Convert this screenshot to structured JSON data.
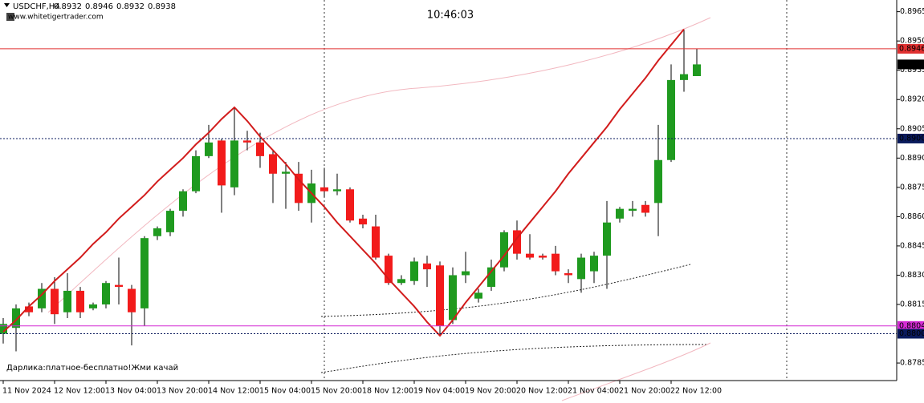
{
  "chart_data": {
    "type": "candlestick",
    "symbol": "USDCHF,H4",
    "ohlc_header": [
      0.8932,
      0.8946,
      0.8932,
      0.8938
    ],
    "website": "www.whitetigertrader.com",
    "clock": "10:46:03",
    "comment": "Дарлика:платное-бесплатно!Жми качай",
    "categories": [
      "11 Nov 2024",
      null,
      null,
      null,
      "12 Nov 12:00",
      null,
      null,
      null,
      "13 Nov 04:00",
      null,
      null,
      null,
      "13 Nov 20:00",
      null,
      null,
      null,
      "14 Nov 12:00",
      null,
      null,
      null,
      "15 Nov 04:00",
      null,
      null,
      null,
      "15 Nov 20:00",
      null,
      null,
      null,
      "18 Nov 12:00",
      null,
      null,
      null,
      "19 Nov 04:00",
      null,
      null,
      null,
      "19 Nov 20:00",
      null,
      null,
      null,
      "20 Nov 12:00",
      null,
      null,
      null,
      "21 Nov 04:00",
      null,
      null,
      null,
      "21 Nov 20:00",
      null,
      null,
      null,
      "22 Nov 12:00",
      null,
      null
    ],
    "open": [
      0.88,
      0.8803,
      0.8814,
      0.8813,
      0.8823,
      0.8811,
      0.8822,
      0.8813,
      0.8815,
      0.8825,
      0.8823,
      0.8813,
      0.885,
      0.8852,
      0.8863,
      0.8873,
      0.8891,
      0.8899,
      0.8875,
      0.8899,
      0.8898,
      0.8892,
      0.8882,
      0.8882,
      0.8867,
      0.8875,
      0.8873,
      0.8874,
      0.8859,
      0.8855,
      0.884,
      0.8826,
      0.8827,
      0.8836,
      0.8835,
      0.8807,
      0.883,
      0.8818,
      0.8824,
      0.8834,
      0.8853,
      0.8841,
      0.884,
      0.8841,
      0.8831,
      0.8828,
      0.8832,
      0.884,
      0.8859,
      0.8863,
      0.8866,
      0.8867,
      0.8889,
      0.893,
      0.8932
    ],
    "high": [
      0.8808,
      0.8815,
      0.8816,
      0.8826,
      0.8829,
      0.8831,
      0.8824,
      0.8816,
      0.8827,
      0.8839,
      0.8825,
      0.885,
      0.8855,
      0.8864,
      0.8874,
      0.8894,
      0.8907,
      0.89,
      0.8916,
      0.8904,
      0.8903,
      0.8894,
      0.8888,
      0.8888,
      0.8884,
      0.8885,
      0.8882,
      0.8875,
      0.8861,
      0.8861,
      0.8841,
      0.883,
      0.8839,
      0.884,
      0.8837,
      0.8834,
      0.8842,
      0.8823,
      0.8838,
      0.8853,
      0.8858,
      0.8851,
      0.8841,
      0.8845,
      0.8833,
      0.8841,
      0.8842,
      0.8868,
      0.8865,
      0.8868,
      0.8868,
      0.8907,
      0.8938,
      0.8956,
      0.8946
    ],
    "low": [
      0.8795,
      0.8791,
      0.8809,
      0.8811,
      0.8805,
      0.8808,
      0.8808,
      0.8812,
      0.8813,
      0.8815,
      0.8794,
      0.8804,
      0.8848,
      0.885,
      0.886,
      0.8872,
      0.889,
      0.8862,
      0.8871,
      0.8894,
      0.8885,
      0.8867,
      0.8864,
      0.8863,
      0.8857,
      0.887,
      0.8871,
      0.8857,
      0.8854,
      0.8838,
      0.8825,
      0.8825,
      0.8825,
      0.8824,
      0.8799,
      0.8805,
      0.8826,
      0.8816,
      0.8822,
      0.8832,
      0.8838,
      0.8838,
      0.8838,
      0.883,
      0.8826,
      0.8821,
      0.8826,
      0.8823,
      0.8857,
      0.886,
      0.886,
      0.885,
      0.8888,
      0.8924,
      0.8932
    ],
    "close": [
      0.8805,
      0.8813,
      0.8811,
      0.8823,
      0.881,
      0.8822,
      0.8811,
      0.8815,
      0.8826,
      0.8824,
      0.8811,
      0.8849,
      0.8854,
      0.8863,
      0.8873,
      0.8891,
      0.8898,
      0.8876,
      0.8899,
      0.8898,
      0.8891,
      0.8882,
      0.8883,
      0.8867,
      0.8877,
      0.8873,
      0.8874,
      0.8858,
      0.8856,
      0.8839,
      0.8826,
      0.8828,
      0.8837,
      0.8833,
      0.8804,
      0.883,
      0.8832,
      0.8821,
      0.8834,
      0.8852,
      0.8841,
      0.8839,
      0.8839,
      0.8832,
      0.883,
      0.8839,
      0.884,
      0.8857,
      0.8864,
      0.8864,
      0.8862,
      0.8889,
      0.893,
      0.8933,
      0.8938
    ],
    "up_color": "#1f9a1f",
    "down_color": "#f21b1b",
    "zigzag": {
      "color": "#d21c1c",
      "values": [
        0.8801,
        0.8807,
        0.8814,
        0.882,
        0.8827,
        0.8833,
        0.8839,
        0.8846,
        0.8852,
        0.8859,
        0.8865,
        0.8871,
        0.8878,
        0.8884,
        0.889,
        0.8897,
        0.8903,
        0.891,
        0.8916,
        0.8909,
        0.8901,
        0.8894,
        0.8887,
        0.8879,
        0.8872,
        0.8865,
        0.8857,
        0.885,
        0.8843,
        0.8836,
        0.8828,
        0.8821,
        0.8814,
        0.8806,
        0.8799,
        0.8807,
        0.8816,
        0.8824,
        0.8832,
        0.884,
        0.8849,
        0.8857,
        0.8865,
        0.8873,
        0.8882,
        0.889,
        0.8898,
        0.8906,
        0.8915,
        0.8923,
        0.8931,
        0.894,
        0.8948,
        0.8956,
        null
      ]
    },
    "levels": [
      {
        "value": 0.8946,
        "label": "0.8946",
        "color": "#e03030",
        "style": "solid"
      },
      {
        "value": 0.8938,
        "label": "0.8938",
        "color": "#000000",
        "style": "none"
      },
      {
        "value": 0.89,
        "label": "0.8900",
        "color": "#0a1a5c",
        "style": "dotted"
      },
      {
        "value": 0.8804,
        "label": "0.8804",
        "color": "#d42ad4",
        "style": "solid"
      },
      {
        "value": 0.88,
        "label": "0.8800",
        "color": "#0a1a5c",
        "style": "dotted"
      }
    ],
    "ylim": [
      0.8776,
      0.8971
    ],
    "yticks": [
      0.8965,
      {
        "value": 0.895,
        "label": "0.8950"
      },
      0.8935,
      {
        "value": 0.892,
        "label": "0.8920"
      },
      0.8905,
      {
        "value": 0.889,
        "label": "0.8890"
      },
      0.8875,
      {
        "value": 0.886,
        "label": "0.8860"
      },
      0.8845,
      {
        "value": 0.883,
        "label": "0.8830"
      },
      0.8815,
      0.8785
    ]
  }
}
